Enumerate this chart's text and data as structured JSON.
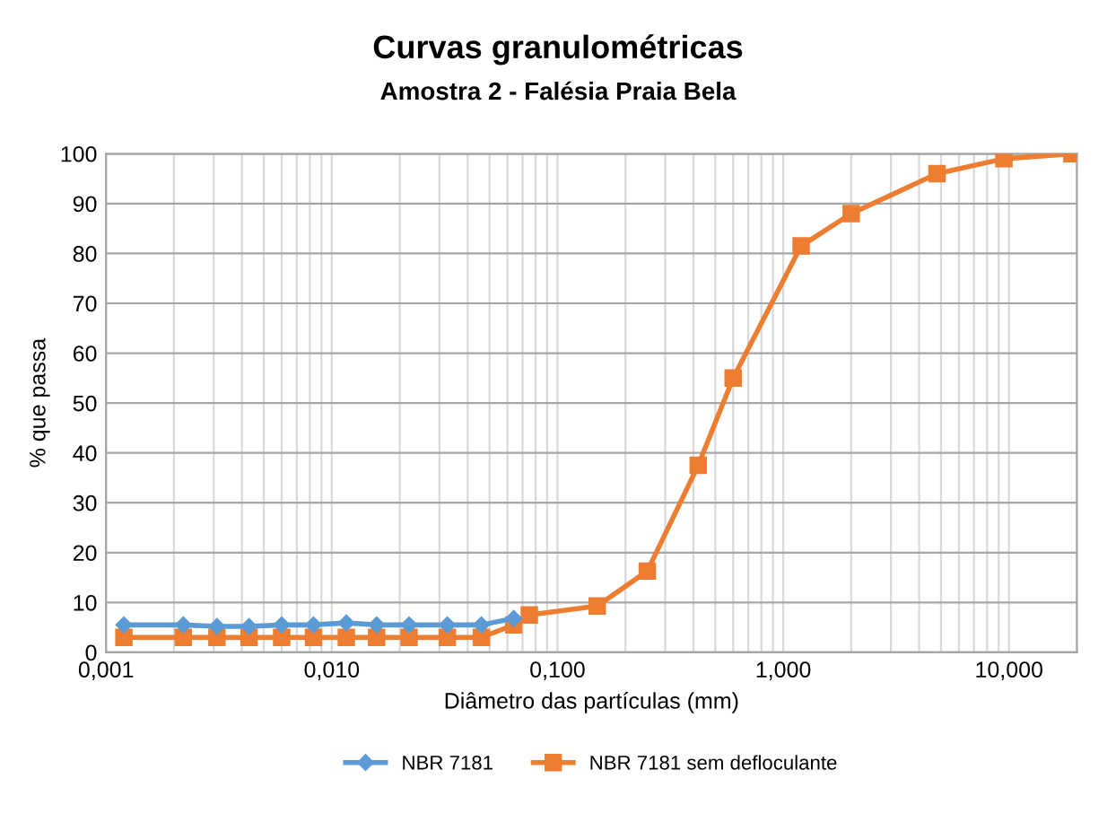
{
  "chart_data": {
    "type": "line",
    "title": "Curvas granulométricas",
    "subtitle": "Amostra 2 - Falésia Praia Bela",
    "xlabel": "Diâmetro das partículas (mm)",
    "ylabel": "% que passa",
    "log": "x",
    "xlim": [
      0.001,
      20
    ],
    "xticks": [
      {
        "value": 0.001,
        "label": "0,001"
      },
      {
        "value": 0.01,
        "label": "0,010"
      },
      {
        "value": 0.1,
        "label": "0,100"
      },
      {
        "value": 1,
        "label": "1,000"
      },
      {
        "value": 10,
        "label": "10,000"
      }
    ],
    "ylim": [
      0,
      100
    ],
    "yticks": [
      0,
      10,
      20,
      30,
      40,
      50,
      60,
      70,
      80,
      90,
      100
    ],
    "grid": true,
    "legend": "bottom",
    "series": [
      {
        "name": "NBR 7181",
        "color": "#5b9bd5",
        "marker": "diamond",
        "x": [
          0.0012,
          0.0022,
          0.0031,
          0.0043,
          0.006,
          0.0083,
          0.0116,
          0.0158,
          0.022,
          0.0325,
          0.046,
          0.064
        ],
        "values": [
          5.5,
          5.5,
          5.2,
          5.2,
          5.5,
          5.5,
          5.9,
          5.5,
          5.5,
          5.5,
          5.5,
          6.8
        ]
      },
      {
        "name": "NBR 7181 sem defloculante",
        "color": "#ed7d31",
        "marker": "square",
        "x": [
          0.0012,
          0.0022,
          0.0031,
          0.0043,
          0.006,
          0.0083,
          0.0116,
          0.0158,
          0.022,
          0.0325,
          0.046,
          0.064,
          0.075,
          0.15,
          0.25,
          0.42,
          0.6,
          1.2,
          2.0,
          4.8,
          9.5,
          19
        ],
        "values": [
          3,
          3,
          3,
          3,
          3,
          3,
          3,
          3,
          3,
          3,
          3,
          5.5,
          7.5,
          9.3,
          16.3,
          37.5,
          55,
          81.5,
          88,
          96,
          99,
          100
        ]
      }
    ]
  }
}
